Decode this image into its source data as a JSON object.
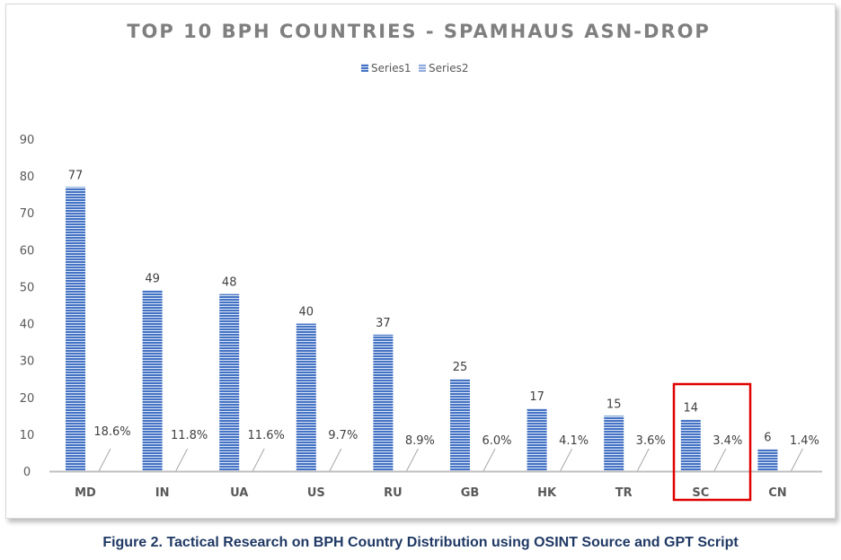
{
  "chart_data": {
    "type": "bar",
    "title": "TOP 10 BPH COUNTRIES - SPAMHAUS ASN-DROP",
    "categories": [
      "MD",
      "IN",
      "UA",
      "US",
      "RU",
      "GB",
      "HK",
      "TR",
      "SC",
      "CN"
    ],
    "series": [
      {
        "name": "Series1",
        "values": [
          77,
          49,
          48,
          40,
          37,
          25,
          17,
          15,
          14,
          6
        ],
        "labels": [
          "77",
          "49",
          "48",
          "40",
          "37",
          "25",
          "17",
          "15",
          "14",
          "6"
        ],
        "color": "#4472c4"
      },
      {
        "name": "Series2",
        "values": [
          0.186,
          0.118,
          0.116,
          0.097,
          0.089,
          0.06,
          0.041,
          0.036,
          0.034,
          0.014
        ],
        "labels": [
          "18.6%",
          "11.8%",
          "11.6%",
          "9.7%",
          "8.9%",
          "6.0%",
          "4.1%",
          "3.6%",
          "3.4%",
          "1.4%"
        ],
        "color": "#8faadc"
      }
    ],
    "ylim": [
      0,
      90
    ],
    "yticks": [
      0,
      10,
      20,
      30,
      40,
      50,
      60,
      70,
      80,
      90
    ],
    "legend_position": "top",
    "grid": false,
    "highlight_category": "SC",
    "highlight_color": "#e00000"
  },
  "caption": "Figure 2. Tactical Research on BPH Country Distribution using OSINT Source and GPT Script"
}
